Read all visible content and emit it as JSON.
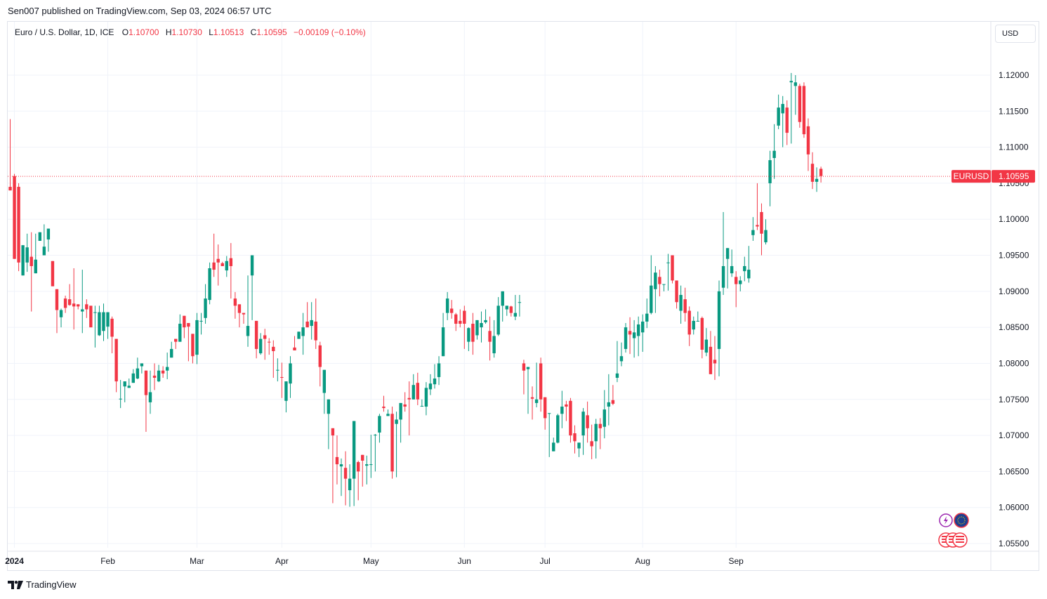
{
  "header": {
    "published": "Sen007 published on TradingView.com, Sep 03, 2024 06:57 UTC"
  },
  "legend": {
    "symbol": "Euro / U.S. Dollar, 1D, ICE",
    "o_label": "O",
    "o_value": "1.10700",
    "h_label": "H",
    "h_value": "1.10730",
    "l_label": "L",
    "l_value": "1.10513",
    "c_label": "C",
    "c_value": "1.10595",
    "change": "−0.00109 (−0.10%)"
  },
  "currency_button": "USD",
  "footer": {
    "brand": "TradingView"
  },
  "colors": {
    "up": "#089981",
    "down": "#f23645",
    "grid": "#f0f3fa",
    "price_line": "#f23645"
  },
  "chart_data": {
    "type": "candlestick",
    "symbol": "EURUSD",
    "last_price": 1.10595,
    "last_price_label": "1.10595",
    "price_tag_label": "EURUSD",
    "y_ticks": [
      "1.12000",
      "1.11500",
      "1.11000",
      "1.10500",
      "1.10000",
      "1.09500",
      "1.09000",
      "1.08500",
      "1.08000",
      "1.07500",
      "1.07000",
      "1.06500",
      "1.06000",
      "1.05500"
    ],
    "ylim": [
      1.0535,
      1.122
    ],
    "x_ticks": [
      {
        "label": "2024",
        "index": 1,
        "bold": true
      },
      {
        "label": "Feb",
        "index": 23
      },
      {
        "label": "Mar",
        "index": 44
      },
      {
        "label": "Apr",
        "index": 64
      },
      {
        "label": "May",
        "index": 85
      },
      {
        "label": "Jun",
        "index": 107
      },
      {
        "label": "Jul",
        "index": 126
      },
      {
        "label": "Aug",
        "index": 149
      },
      {
        "label": "Sep",
        "index": 171
      }
    ],
    "candles": [
      [
        1.1045,
        1.104,
        1.1139,
        1.1043
      ],
      [
        1.106,
        1.0945,
        1.1063,
        1.1043
      ],
      [
        1.1045,
        1.094,
        1.105,
        1.0928
      ],
      [
        1.0922,
        1.0964,
        1.0955,
        1.0938
      ],
      [
        1.094,
        1.0961,
        1.098,
        1.0927
      ],
      [
        1.0948,
        1.0935,
        1.0982,
        1.0872
      ],
      [
        1.0925,
        1.0944,
        1.098,
        1.0932
      ],
      [
        1.097,
        1.0982,
        1.093,
        1.098
      ],
      [
        1.095,
        1.0962,
        1.0993,
        1.0955
      ],
      [
        1.0972,
        1.0987,
        1.0961,
        1.0955
      ],
      [
        1.0942,
        1.0907,
        1.093,
        1.0913
      ],
      [
        1.0903,
        1.0874,
        1.0876,
        1.0842
      ],
      [
        1.0864,
        1.0874,
        1.0876,
        1.085
      ],
      [
        1.089,
        1.0877,
        1.0894,
        1.087
      ],
      [
        1.0889,
        1.0881,
        1.091,
        1.088
      ],
      [
        1.0883,
        1.0879,
        1.0932,
        1.0847
      ],
      [
        1.0882,
        1.0879,
        1.087,
        1.0875
      ],
      [
        1.0872,
        1.0875,
        1.093,
        1.0842
      ],
      [
        1.0882,
        1.0875,
        1.0889,
        1.0863
      ],
      [
        1.088,
        1.085,
        1.0839,
        1.0852
      ],
      [
        1.087,
        1.0871,
        1.088,
        1.0822
      ],
      [
        1.0839,
        1.0871,
        1.088,
        1.0838
      ],
      [
        1.0845,
        1.0871,
        1.0883,
        1.0831
      ],
      [
        1.0851,
        1.0871,
        1.0858,
        1.0834
      ],
      [
        1.0862,
        1.0837,
        1.0865,
        1.0814
      ],
      [
        1.0834,
        1.0775,
        1.0799,
        1.076
      ],
      [
        1.0751,
        1.0751,
        1.0777,
        1.0738
      ],
      [
        1.0768,
        1.0775,
        1.0773,
        1.0746
      ],
      [
        1.0766,
        1.0769,
        1.0779,
        1.0767
      ],
      [
        1.0773,
        1.0786,
        1.0792,
        1.0784
      ],
      [
        1.0779,
        1.0793,
        1.0808,
        1.0778
      ],
      [
        1.0796,
        1.08,
        1.0753,
        1.0786
      ],
      [
        1.079,
        1.0756,
        1.0781,
        1.0705
      ],
      [
        1.0746,
        1.076,
        1.079,
        1.073
      ],
      [
        1.0783,
        1.078,
        1.08,
        1.0763
      ],
      [
        1.0775,
        1.079,
        1.0798,
        1.0774
      ],
      [
        1.079,
        1.0786,
        1.0796,
        1.078
      ],
      [
        1.079,
        1.0795,
        1.0815,
        1.0778
      ],
      [
        1.0808,
        1.082,
        1.083,
        1.0808
      ],
      [
        1.0834,
        1.083,
        1.0833,
        1.082
      ],
      [
        1.083,
        1.0855,
        1.0868,
        1.083
      ],
      [
        1.0866,
        1.085,
        1.0861,
        1.0835
      ],
      [
        1.0856,
        1.0851,
        1.0856,
        1.0803
      ],
      [
        1.0841,
        1.081,
        1.0837,
        1.08
      ],
      [
        1.0812,
        1.086,
        1.087,
        1.0799
      ],
      [
        1.0859,
        1.0859,
        1.087,
        1.084
      ],
      [
        1.0863,
        1.089,
        1.091,
        1.0855
      ],
      [
        1.0888,
        1.0932,
        1.094,
        1.0882
      ],
      [
        1.094,
        1.093,
        1.098,
        1.092
      ],
      [
        1.0945,
        1.094,
        1.0965,
        1.0908
      ],
      [
        1.0939,
        1.0935,
        1.0941,
        1.0938
      ],
      [
        1.0929,
        1.0942,
        1.0949,
        1.092
      ],
      [
        1.0946,
        1.0935,
        1.0967,
        1.089
      ],
      [
        1.089,
        1.088,
        1.0899,
        1.0862
      ],
      [
        1.0882,
        1.087,
        1.088,
        1.085
      ],
      [
        1.087,
        1.0868,
        1.0867,
        1.0855
      ],
      [
        1.0838,
        1.0852,
        1.0922,
        1.0823
      ],
      [
        1.0922,
        1.095,
        1.0945,
        1.086
      ],
      [
        1.0859,
        1.082,
        1.0852,
        1.0807
      ],
      [
        1.0814,
        1.0834,
        1.0842,
        1.0812
      ],
      [
        1.0839,
        1.0834,
        1.0848,
        1.0805
      ],
      [
        1.083,
        1.0829,
        1.0835,
        1.0812
      ],
      [
        1.0823,
        1.0817,
        1.0832,
        1.078
      ],
      [
        1.0791,
        1.0791,
        1.0807,
        1.0775
      ],
      [
        1.0781,
        1.078,
        1.0801,
        1.0752
      ],
      [
        1.0748,
        1.0775,
        1.077,
        1.0732
      ],
      [
        1.0772,
        1.08,
        1.081,
        1.0752
      ],
      [
        1.0822,
        1.0818,
        1.0838,
        1.0822
      ],
      [
        1.0834,
        1.0844,
        1.0843,
        1.0838
      ],
      [
        1.0838,
        1.085,
        1.087,
        1.0812
      ],
      [
        1.0858,
        1.085,
        1.0885,
        1.0858
      ],
      [
        1.0852,
        1.086,
        1.0885,
        1.0833
      ],
      [
        1.0858,
        1.0832,
        1.089,
        1.082
      ],
      [
        1.0825,
        1.0795,
        1.083,
        1.0768
      ],
      [
        1.0759,
        1.0791,
        1.076,
        1.073
      ],
      [
        1.073,
        1.075,
        1.0731,
        1.0681
      ],
      [
        1.071,
        1.07,
        1.065,
        1.0606
      ],
      [
        1.067,
        1.066,
        1.07,
        1.0632
      ],
      [
        1.0657,
        1.066,
        1.0668,
        1.0616
      ],
      [
        1.0655,
        1.064,
        1.0678,
        1.0603
      ],
      [
        1.0624,
        1.064,
        1.066,
        1.0601
      ],
      [
        1.064,
        1.072,
        1.072,
        1.0602
      ],
      [
        1.0663,
        1.065,
        1.0665,
        1.061
      ],
      [
        1.0673,
        1.0665,
        1.0659,
        1.0629
      ],
      [
        1.0658,
        1.066,
        1.0672,
        1.0632
      ],
      [
        1.066,
        1.066,
        1.0701,
        1.0641
      ],
      [
        1.07,
        1.0701,
        1.0702,
        1.065
      ],
      [
        1.0704,
        1.0727,
        1.073,
        1.069
      ],
      [
        1.074,
        1.0738,
        1.0755,
        1.0733
      ],
      [
        1.0727,
        1.073,
        1.0736,
        1.073
      ],
      [
        1.073,
        1.065,
        1.074,
        1.064
      ],
      [
        1.0716,
        1.0722,
        1.0733,
        1.0642
      ],
      [
        1.0722,
        1.0745,
        1.0742,
        1.069
      ],
      [
        1.0743,
        1.074,
        1.076,
        1.0733
      ],
      [
        1.0752,
        1.075,
        1.0775,
        1.07
      ],
      [
        1.075,
        1.077,
        1.0785,
        1.075
      ],
      [
        1.0773,
        1.075,
        1.0787,
        1.0742
      ],
      [
        1.0741,
        1.0741,
        1.075,
        1.074
      ],
      [
        1.074,
        1.0766,
        1.0774,
        1.0728
      ],
      [
        1.0764,
        1.0772,
        1.0785,
        1.0756
      ],
      [
        1.0771,
        1.0779,
        1.0799,
        1.0765
      ],
      [
        1.0781,
        1.08,
        1.081,
        1.077
      ],
      [
        1.081,
        1.085,
        1.087,
        1.081
      ],
      [
        1.087,
        1.089,
        1.0899,
        1.086
      ],
      [
        1.0876,
        1.087,
        1.0888,
        1.0862
      ],
      [
        1.0868,
        1.0855,
        1.087,
        1.0845
      ],
      [
        1.0859,
        1.0855,
        1.0875,
        1.085
      ],
      [
        1.0873,
        1.0855,
        1.088,
        1.082
      ],
      [
        1.083,
        1.0849,
        1.085,
        1.0817
      ],
      [
        1.0855,
        1.083,
        1.087,
        1.0812
      ],
      [
        1.0839,
        1.086,
        1.085,
        1.0833
      ],
      [
        1.085,
        1.0856,
        1.0872,
        1.0829
      ],
      [
        1.0857,
        1.086,
        1.0875,
        1.0855
      ],
      [
        1.0845,
        1.083,
        1.0865,
        1.0804
      ],
      [
        1.0814,
        1.0838,
        1.086,
        1.0808
      ],
      [
        1.084,
        1.088,
        1.0892,
        1.0838
      ],
      [
        1.088,
        1.09,
        1.0895,
        1.0858
      ],
      [
        1.0875,
        1.088,
        1.0878,
        1.0866
      ],
      [
        1.0879,
        1.087,
        1.088,
        1.0865
      ],
      [
        1.0865,
        1.087,
        1.0895,
        1.086
      ],
      [
        1.0885,
        1.0885,
        1.0895,
        1.0865
      ],
      [
        1.08,
        1.079,
        1.0805,
        1.0757
      ],
      [
        1.0792,
        1.0795,
        1.0794,
        1.073
      ],
      [
        1.0753,
        1.0751,
        1.0768,
        1.0722
      ],
      [
        1.0745,
        1.075,
        1.0801,
        1.0739
      ],
      [
        1.08,
        1.075,
        1.0808,
        1.0733
      ],
      [
        1.0753,
        1.0724,
        1.074,
        1.0708
      ],
      [
        1.073,
        1.0731,
        1.0727,
        1.067
      ],
      [
        1.0678,
        1.069,
        1.0697,
        1.0681
      ],
      [
        1.069,
        1.0728,
        1.073,
        1.0689
      ],
      [
        1.073,
        1.074,
        1.0762,
        1.071
      ],
      [
        1.0743,
        1.074,
        1.0748,
        1.072
      ],
      [
        1.0748,
        1.07,
        1.0752,
        1.069
      ],
      [
        1.0703,
        1.0692,
        1.0714,
        1.0675
      ],
      [
        1.0682,
        1.069,
        1.0688,
        1.067
      ],
      [
        1.07,
        1.0733,
        1.0738,
        1.0673
      ],
      [
        1.0728,
        1.071,
        1.0747,
        1.069
      ],
      [
        1.0692,
        1.0685,
        1.0715,
        1.0667
      ],
      [
        1.0692,
        1.0716,
        1.0723,
        1.0668
      ],
      [
        1.0716,
        1.071,
        1.0724,
        1.0681
      ],
      [
        1.0712,
        1.0736,
        1.0763,
        1.0696
      ],
      [
        1.074,
        1.0746,
        1.0785,
        1.0714
      ],
      [
        1.0749,
        1.0744,
        1.077,
        1.0742
      ],
      [
        1.078,
        1.0786,
        1.0831,
        1.0774
      ],
      [
        1.0803,
        1.081,
        1.0829,
        1.0796
      ],
      [
        1.082,
        1.085,
        1.0856,
        1.0815
      ],
      [
        1.0845,
        1.084,
        1.0864,
        1.0813
      ],
      [
        1.0835,
        1.0843,
        1.086,
        1.0808
      ],
      [
        1.0838,
        1.0854,
        1.0865,
        1.081
      ],
      [
        1.0843,
        1.0858,
        1.0868,
        1.0816
      ],
      [
        1.0858,
        1.0869,
        1.089,
        1.0849
      ],
      [
        1.087,
        1.0908,
        1.095,
        1.0868
      ],
      [
        1.0903,
        1.0926,
        1.0935,
        1.087
      ],
      [
        1.092,
        1.091,
        1.093,
        1.0893
      ],
      [
        1.091,
        1.091,
        1.0896,
        1.09
      ],
      [
        1.094,
        1.094,
        1.0952,
        1.0901
      ],
      [
        1.095,
        1.0915,
        1.0945,
        1.0911
      ],
      [
        1.0915,
        1.0885,
        1.0898,
        1.0876
      ],
      [
        1.0873,
        1.0895,
        1.0908,
        1.0855
      ],
      [
        1.0889,
        1.087,
        1.0905,
        1.0858
      ],
      [
        1.0873,
        1.084,
        1.0879,
        1.0824
      ],
      [
        1.0847,
        1.0859,
        1.0865,
        1.084
      ],
      [
        1.0859,
        1.0859,
        1.0872,
        1.0858
      ],
      [
        1.0863,
        1.0819,
        1.0865,
        1.0807
      ],
      [
        1.0815,
        1.0833,
        1.0849,
        1.081
      ],
      [
        1.0823,
        1.0785,
        1.0845,
        1.0788
      ],
      [
        1.0805,
        1.08,
        1.0838,
        1.0777
      ],
      [
        1.082,
        1.09,
        1.0915,
        1.0782
      ],
      [
        1.0905,
        1.0935,
        1.101,
        1.0895
      ],
      [
        1.0945,
        1.096,
        1.096,
        1.0904
      ],
      [
        1.0925,
        1.0935,
        1.0958,
        1.092
      ],
      [
        1.092,
        1.091,
        1.0928,
        1.0878
      ],
      [
        1.091,
        1.0915,
        1.0921,
        1.09
      ],
      [
        1.0928,
        1.0935,
        1.0948,
        1.0914
      ],
      [
        1.0918,
        1.093,
        1.0963,
        1.0912
      ],
      [
        1.0978,
        1.0985,
        1.1003,
        1.097
      ],
      [
        1.0992,
        1.099,
        1.105,
        1.0985
      ],
      [
        1.101,
        1.098,
        1.1022,
        1.095
      ],
      [
        1.0968,
        1.0985,
        1.1,
        1.0965
      ],
      [
        1.105,
        1.1082,
        1.1095,
        1.1018
      ],
      [
        1.1085,
        1.1095,
        1.1132,
        1.1056
      ],
      [
        1.113,
        1.1155,
        1.1173,
        1.1125
      ],
      [
        1.1147,
        1.116,
        1.1171,
        1.11
      ],
      [
        1.1155,
        1.112,
        1.1165,
        1.1103
      ],
      [
        1.119,
        1.1192,
        1.1203,
        1.1105
      ],
      [
        1.1185,
        1.119,
        1.12,
        1.1145
      ],
      [
        1.1185,
        1.1135,
        1.1188,
        1.1127
      ],
      [
        1.1185,
        1.1118,
        1.119,
        1.1113
      ],
      [
        1.1129,
        1.109,
        1.114,
        1.1067
      ],
      [
        1.1077,
        1.1052,
        1.1093,
        1.1042
      ],
      [
        1.1052,
        1.1056,
        1.1072,
        1.1038
      ],
      [
        1.107,
        1.106,
        1.1073,
        1.1051
      ]
    ]
  }
}
